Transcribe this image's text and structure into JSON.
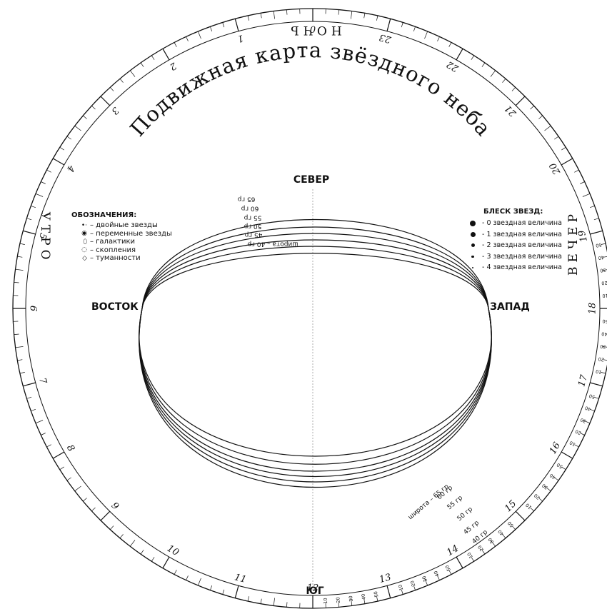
{
  "title": "Подвижная карта звёздного неба",
  "directions": {
    "north": "СЕВЕР",
    "south": "ЮГ",
    "east": "ВОСТОК",
    "west": "ЗАПАД"
  },
  "day_parts": {
    "night": "НОЧЬ",
    "morning": "УТРО",
    "evening": "ВЕЧЕР"
  },
  "hour_labels": [
    "0",
    "1",
    "2",
    "3",
    "4",
    "5",
    "6",
    "7",
    "8",
    "9",
    "10",
    "11",
    "12",
    "13",
    "14",
    "15",
    "16",
    "17",
    "18",
    "19",
    "20",
    "21",
    "22",
    "23"
  ],
  "latitude_labels_north": [
    "65 гр",
    "60 гр",
    "55 гр",
    "50 гр",
    "45 гр",
    "широта – 40 гр"
  ],
  "latitude_labels_south": [
    "широта – 65 гр",
    "60 гр",
    "55 гр",
    "50 гр",
    "45 гр",
    "40 гр"
  ],
  "minute_labels": [
    "10",
    "20",
    "30",
    "40",
    "50"
  ],
  "legend_symbols": {
    "title": "ОБОЗНАЧЕНИЯ:",
    "items": [
      {
        "icon": "double-star-icon",
        "label": "– двойные звезды"
      },
      {
        "icon": "variable-star-icon",
        "label": "– переменные звезды"
      },
      {
        "icon": "galaxy-icon",
        "label": "– галактики"
      },
      {
        "icon": "cluster-icon",
        "label": "– скопления"
      },
      {
        "icon": "nebula-icon",
        "label": "– туманности"
      }
    ]
  },
  "legend_brightness": {
    "title": "БЛЕСК ЗВЕЗД:",
    "items": [
      {
        "label": "- 0 звездная величина",
        "magnitude": 0
      },
      {
        "label": "- 1 звездная величина",
        "magnitude": 1
      },
      {
        "label": "- 2 звездная величина",
        "magnitude": 2
      },
      {
        "label": "- 3 звездная величина",
        "magnitude": 3
      },
      {
        "label": "- 4 звездная величина",
        "magnitude": 4
      }
    ]
  },
  "colors": {
    "ink": "#111111",
    "paper": "#ffffff"
  }
}
